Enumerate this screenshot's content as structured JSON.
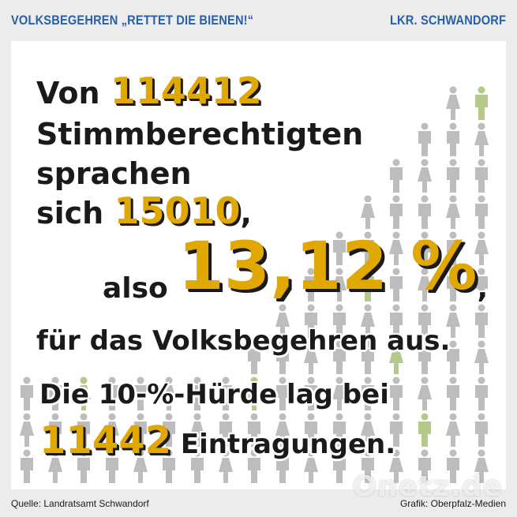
{
  "header": {
    "left": "VOLKSBEGEHREN „RETTET DIE BIENEN!“",
    "right": "LKR. SCHWANDORF"
  },
  "main": {
    "line1_prefix": "Von",
    "line1_number": "114412",
    "line2": "Stimmberechtigten",
    "line3": "sprachen",
    "line4_prefix": "sich",
    "line4_number": "15010",
    "line4_suffix": ",",
    "line5_prefix": "also",
    "line5_percent": "13,12 %",
    "line5_suffix": ",",
    "line6": "für das Volksbegehren aus.",
    "line7": "Die 10-%-Hürde lag bei",
    "line8_number": "11442",
    "line8_suffix": "Eintragungen."
  },
  "footer": {
    "source": "Quelle: Landratsamt Schwandorf",
    "credit": "Grafik: Oberpfalz-Medien"
  },
  "watermark": "Onetz.de",
  "colors": {
    "accent": "#e0a800",
    "header": "#2760a8",
    "figure_gray": "#bdbdbd",
    "figure_green": "#b5c98a"
  }
}
